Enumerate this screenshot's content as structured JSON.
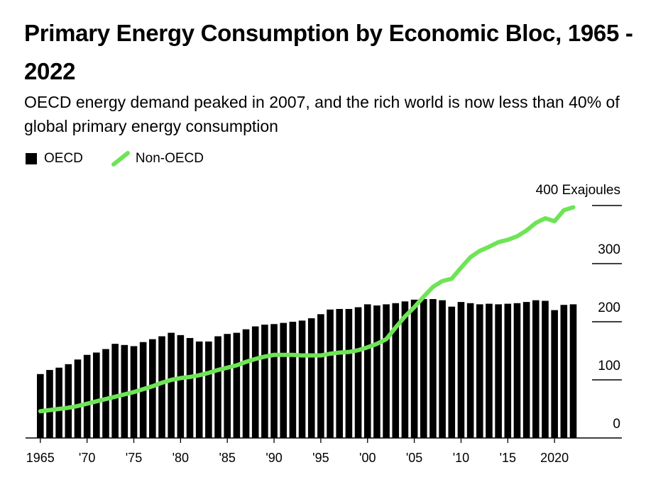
{
  "title": "Primary Energy Consumption by Economic Bloc, 1965 - 2022",
  "subtitle": "OECD energy demand peaked in 2007, and the rich world is now less than 40% of global primary energy consumption",
  "legend": {
    "oecd": "OECD",
    "non_oecd": "Non-OECD"
  },
  "colors": {
    "oecd": "#000000",
    "non_oecd": "#6ee456"
  },
  "chart_data": {
    "type": "bar+line",
    "x": [
      1965,
      1966,
      1967,
      1968,
      1969,
      1970,
      1971,
      1972,
      1973,
      1974,
      1975,
      1976,
      1977,
      1978,
      1979,
      1980,
      1981,
      1982,
      1983,
      1984,
      1985,
      1986,
      1987,
      1988,
      1989,
      1990,
      1991,
      1992,
      1993,
      1994,
      1995,
      1996,
      1997,
      1998,
      1999,
      2000,
      2001,
      2002,
      2003,
      2004,
      2005,
      2006,
      2007,
      2008,
      2009,
      2010,
      2011,
      2012,
      2013,
      2014,
      2015,
      2016,
      2017,
      2018,
      2019,
      2020,
      2021,
      2022
    ],
    "series": [
      {
        "name": "OECD",
        "kind": "bar",
        "values": [
          110,
          117,
          121,
          127,
          135,
          143,
          147,
          153,
          162,
          160,
          158,
          165,
          170,
          175,
          181,
          177,
          172,
          166,
          166,
          175,
          179,
          181,
          187,
          192,
          195,
          196,
          198,
          200,
          202,
          206,
          213,
          221,
          222,
          222,
          225,
          230,
          228,
          230,
          232,
          235,
          238,
          239,
          239,
          237,
          226,
          234,
          232,
          230,
          231,
          230,
          231,
          232,
          234,
          237,
          236,
          220,
          229,
          230
        ]
      },
      {
        "name": "Non-OECD",
        "kind": "line",
        "values": [
          46,
          48,
          50,
          52,
          55,
          59,
          63,
          67,
          71,
          75,
          79,
          84,
          89,
          95,
          100,
          103,
          105,
          108,
          112,
          117,
          121,
          125,
          131,
          136,
          140,
          143,
          143,
          143,
          142,
          142,
          142,
          145,
          147,
          148,
          151,
          156,
          162,
          170,
          190,
          209,
          225,
          243,
          260,
          270,
          274,
          293,
          311,
          322,
          329,
          337,
          341,
          347,
          357,
          370,
          378,
          373,
          392,
          397
        ]
      }
    ],
    "yaxis": {
      "unit_label": "400 Exajoules",
      "ticks": [
        "0",
        "100",
        "200",
        "300"
      ],
      "ylim": [
        0,
        400
      ]
    },
    "x_ticks": [
      {
        "year": 1965,
        "label": "1965"
      },
      {
        "year": 1970,
        "label": "'70"
      },
      {
        "year": 1975,
        "label": "'75"
      },
      {
        "year": 1980,
        "label": "'80"
      },
      {
        "year": 1985,
        "label": "'85"
      },
      {
        "year": 1990,
        "label": "'90"
      },
      {
        "year": 1995,
        "label": "'95"
      },
      {
        "year": 2000,
        "label": "'00"
      },
      {
        "year": 2005,
        "label": "'05"
      },
      {
        "year": 2010,
        "label": "'10"
      },
      {
        "year": 2015,
        "label": "'15"
      },
      {
        "year": 2020,
        "label": "2020"
      }
    ]
  }
}
